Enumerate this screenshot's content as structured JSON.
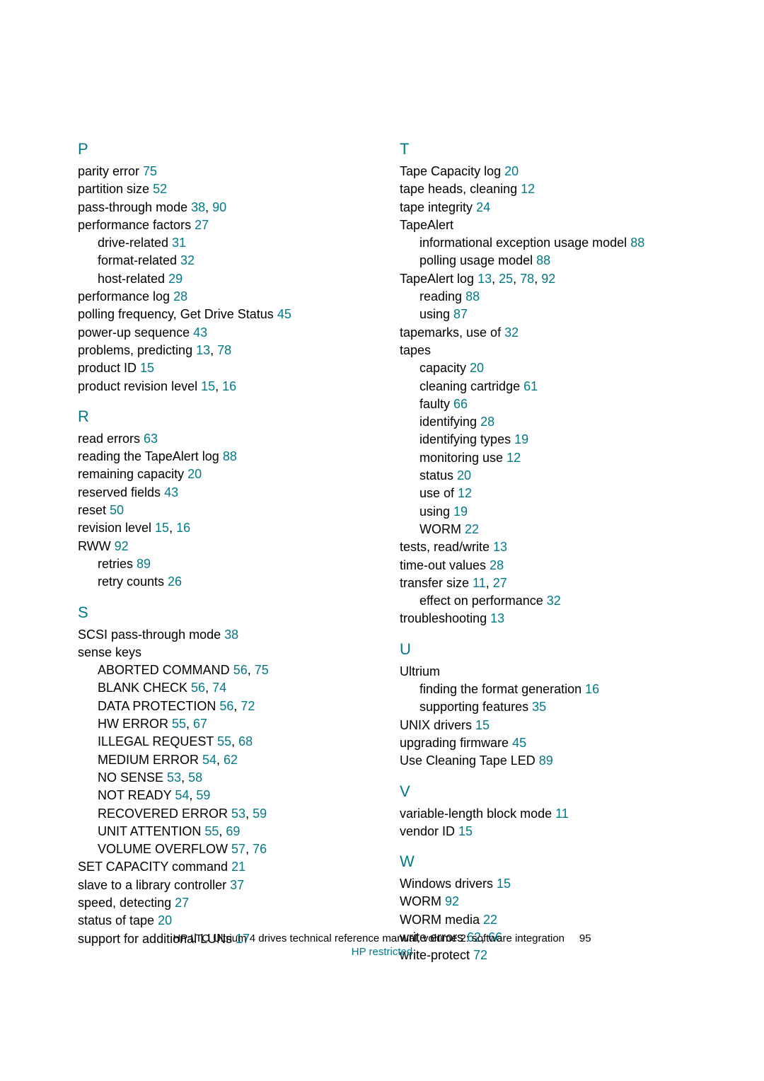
{
  "colors": {
    "link": "#007a87",
    "text": "#000000",
    "bg": "#ffffff"
  },
  "fontsize": {
    "body": 18,
    "letter": 22,
    "footer": 15
  },
  "left": {
    "P": {
      "letter": "P",
      "items": [
        {
          "t": "parity error ",
          "p": "75"
        },
        {
          "t": "partition size ",
          "p": "52"
        },
        {
          "t": "pass-through mode ",
          "p": "38, 90"
        },
        {
          "t": "performance factors ",
          "p": "27"
        },
        {
          "t": "drive-related ",
          "p": "31",
          "i": 1
        },
        {
          "t": "format-related ",
          "p": "32",
          "i": 1
        },
        {
          "t": "host-related ",
          "p": "29",
          "i": 1
        },
        {
          "t": "performance log ",
          "p": "28"
        },
        {
          "t": "polling frequency, Get Drive Status ",
          "p": "45"
        },
        {
          "t": "power-up sequence ",
          "p": "43"
        },
        {
          "t": "problems, predicting ",
          "p": "13, 78"
        },
        {
          "t": "product ID ",
          "p": "15"
        },
        {
          "t": "product revision level ",
          "p": "15, 16"
        }
      ]
    },
    "R": {
      "letter": "R",
      "items": [
        {
          "t": "read errors ",
          "p": "63"
        },
        {
          "t": "reading the TapeAlert log ",
          "p": "88"
        },
        {
          "t": "remaining capacity ",
          "p": "20"
        },
        {
          "t": "reserved fields ",
          "p": "43"
        },
        {
          "t": "reset ",
          "p": "50"
        },
        {
          "t": "revision level ",
          "p": "15, 16"
        },
        {
          "t": "RWW ",
          "p": "92"
        },
        {
          "t": "retries ",
          "p": "89",
          "i": 1
        },
        {
          "t": "retry counts ",
          "p": "26",
          "i": 1
        }
      ]
    },
    "S": {
      "letter": "S",
      "items": [
        {
          "t": "SCSI pass-through mode ",
          "p": "38"
        },
        {
          "t": "sense keys",
          "p": ""
        },
        {
          "t": "ABORTED COMMAND ",
          "p": "56, 75",
          "i": 1
        },
        {
          "t": "BLANK CHECK ",
          "p": "56, 74",
          "i": 1
        },
        {
          "t": "DATA PROTECTION ",
          "p": "56, 72",
          "i": 1
        },
        {
          "t": "HW ERROR ",
          "p": "55, 67",
          "i": 1
        },
        {
          "t": "ILLEGAL REQUEST ",
          "p": "55, 68",
          "i": 1
        },
        {
          "t": "MEDIUM ERROR ",
          "p": "54, 62",
          "i": 1
        },
        {
          "t": "NO SENSE ",
          "p": "53, 58",
          "i": 1
        },
        {
          "t": "NOT READY ",
          "p": "54, 59",
          "i": 1
        },
        {
          "t": "RECOVERED ERROR ",
          "p": "53, 59",
          "i": 1
        },
        {
          "t": "UNIT ATTENTION ",
          "p": "55, 69",
          "i": 1
        },
        {
          "t": "VOLUME OVERFLOW ",
          "p": "57, 76",
          "i": 1
        },
        {
          "t": "SET CAPACITY command ",
          "p": "21"
        },
        {
          "t": "slave to a library controller ",
          "p": "37"
        },
        {
          "t": "speed, detecting ",
          "p": "27"
        },
        {
          "t": "status of tape ",
          "p": "20"
        },
        {
          "t": "support for additional LUNs ",
          "p": "17"
        }
      ]
    }
  },
  "right": {
    "T": {
      "letter": "T",
      "items": [
        {
          "t": "Tape Capacity log ",
          "p": "20"
        },
        {
          "t": "tape heads, cleaning ",
          "p": "12"
        },
        {
          "t": "tape integrity ",
          "p": "24"
        },
        {
          "t": "TapeAlert",
          "p": ""
        },
        {
          "t": "informational exception usage model ",
          "p": "88",
          "i": 1
        },
        {
          "t": "polling usage model ",
          "p": "88",
          "i": 1
        },
        {
          "t": "TapeAlert log ",
          "p": "13, 25, 78, 92"
        },
        {
          "t": "reading ",
          "p": "88",
          "i": 1
        },
        {
          "t": "using ",
          "p": "87",
          "i": 1
        },
        {
          "t": "tapemarks, use of ",
          "p": "32"
        },
        {
          "t": "tapes",
          "p": ""
        },
        {
          "t": "capacity ",
          "p": "20",
          "i": 1
        },
        {
          "t": "cleaning cartridge ",
          "p": "61",
          "i": 1
        },
        {
          "t": "faulty ",
          "p": "66",
          "i": 1
        },
        {
          "t": "identifying ",
          "p": "28",
          "i": 1
        },
        {
          "t": "identifying types ",
          "p": "19",
          "i": 1
        },
        {
          "t": "monitoring use ",
          "p": "12",
          "i": 1
        },
        {
          "t": "status ",
          "p": "20",
          "i": 1
        },
        {
          "t": "use of ",
          "p": "12",
          "i": 1
        },
        {
          "t": "using ",
          "p": "19",
          "i": 1
        },
        {
          "t": "WORM ",
          "p": "22",
          "i": 1
        },
        {
          "t": "tests, read/write ",
          "p": "13"
        },
        {
          "t": "time-out values ",
          "p": "28"
        },
        {
          "t": "transfer size ",
          "p": "11, 27"
        },
        {
          "t": "effect on performance ",
          "p": "32",
          "i": 1
        },
        {
          "t": "troubleshooting ",
          "p": "13"
        }
      ]
    },
    "U": {
      "letter": "U",
      "items": [
        {
          "t": "Ultrium",
          "p": ""
        },
        {
          "t": "finding the format generation ",
          "p": "16",
          "i": 1
        },
        {
          "t": "supporting features ",
          "p": "35",
          "i": 1
        },
        {
          "t": "UNIX drivers ",
          "p": "15"
        },
        {
          "t": "upgrading firmware ",
          "p": "45"
        },
        {
          "t": "Use Cleaning Tape LED ",
          "p": "89"
        }
      ]
    },
    "V": {
      "letter": "V",
      "items": [
        {
          "t": "variable-length block mode ",
          "p": "11"
        },
        {
          "t": "vendor ID ",
          "p": "15"
        }
      ]
    },
    "W": {
      "letter": "W",
      "items": [
        {
          "t": "Windows drivers ",
          "p": "15"
        },
        {
          "t": "WORM ",
          "p": "92"
        },
        {
          "t": "WORM media ",
          "p": "22"
        },
        {
          "t": "write errors ",
          "p": "62, 66"
        },
        {
          "t": "write-protect ",
          "p": "72"
        }
      ]
    }
  },
  "footer": {
    "line1": "HP LTO Ultrium 4 drives technical reference manual, volume 2: software integration",
    "pagenum": "95",
    "restricted": "HP restricted"
  }
}
